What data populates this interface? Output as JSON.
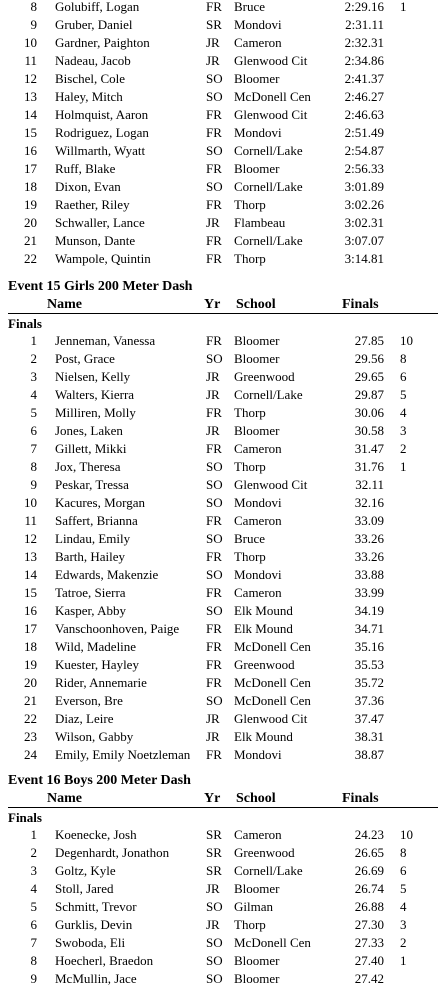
{
  "continued_rows": [
    {
      "place": 8,
      "name": "Golubiff, Logan",
      "yr": "FR",
      "school": "Bruce",
      "time": "2:29.16",
      "points": 1
    },
    {
      "place": 9,
      "name": "Gruber, Daniel",
      "yr": "SR",
      "school": "Mondovi",
      "time": "2:31.11"
    },
    {
      "place": 10,
      "name": "Gardner, Paighton",
      "yr": "JR",
      "school": "Cameron",
      "time": "2:32.31"
    },
    {
      "place": 11,
      "name": "Nadeau, Jacob",
      "yr": "JR",
      "school": "Glenwood Cit",
      "time": "2:34.86"
    },
    {
      "place": 12,
      "name": "Bischel, Cole",
      "yr": "SO",
      "school": "Bloomer",
      "time": "2:41.37"
    },
    {
      "place": 13,
      "name": "Haley, Mitch",
      "yr": "SO",
      "school": "McDonell Cen",
      "time": "2:46.27"
    },
    {
      "place": 14,
      "name": "Holmquist, Aaron",
      "yr": "FR",
      "school": "Glenwood Cit",
      "time": "2:46.63"
    },
    {
      "place": 15,
      "name": "Rodriguez, Logan",
      "yr": "FR",
      "school": "Mondovi",
      "time": "2:51.49"
    },
    {
      "place": 16,
      "name": "Willmarth, Wyatt",
      "yr": "SO",
      "school": "Cornell/Lake",
      "time": "2:54.87"
    },
    {
      "place": 17,
      "name": "Ruff, Blake",
      "yr": "FR",
      "school": "Bloomer",
      "time": "2:56.33"
    },
    {
      "place": 18,
      "name": "Dixon, Evan",
      "yr": "SO",
      "school": "Cornell/Lake",
      "time": "3:01.89"
    },
    {
      "place": 19,
      "name": "Raether, Riley",
      "yr": "FR",
      "school": "Thorp",
      "time": "3:02.26"
    },
    {
      "place": 20,
      "name": "Schwaller, Lance",
      "yr": "JR",
      "school": "Flambeau",
      "time": "3:02.31"
    },
    {
      "place": 21,
      "name": "Munson, Dante",
      "yr": "FR",
      "school": "Cornell/Lake",
      "time": "3:07.07"
    },
    {
      "place": 22,
      "name": "Wampole, Quintin",
      "yr": "FR",
      "school": "Thorp",
      "time": "3:14.81"
    }
  ],
  "events": [
    {
      "title": "Event 15  Girls 200 Meter Dash",
      "headers": {
        "name": "Name",
        "yr": "Yr",
        "school": "School",
        "finals": "Finals"
      },
      "round": "Finals",
      "rows": [
        {
          "place": 1,
          "name": "Jenneman, Vanessa",
          "yr": "FR",
          "school": "Bloomer",
          "time": "27.85",
          "points": 10
        },
        {
          "place": 2,
          "name": "Post, Grace",
          "yr": "SO",
          "school": "Bloomer",
          "time": "29.56",
          "points": 8
        },
        {
          "place": 3,
          "name": "Nielsen, Kelly",
          "yr": "JR",
          "school": "Greenwood",
          "time": "29.65",
          "points": 6
        },
        {
          "place": 4,
          "name": "Walters, Kierra",
          "yr": "JR",
          "school": "Cornell/Lake",
          "time": "29.87",
          "points": 5
        },
        {
          "place": 5,
          "name": "Milliren, Molly",
          "yr": "FR",
          "school": "Thorp",
          "time": "30.06",
          "points": 4
        },
        {
          "place": 6,
          "name": "Jones, Laken",
          "yr": "JR",
          "school": "Bloomer",
          "time": "30.58",
          "points": 3
        },
        {
          "place": 7,
          "name": "Gillett, Mikki",
          "yr": "FR",
          "school": "Cameron",
          "time": "31.47",
          "points": 2
        },
        {
          "place": 8,
          "name": "Jox, Theresa",
          "yr": "SO",
          "school": "Thorp",
          "time": "31.76",
          "points": 1
        },
        {
          "place": 9,
          "name": "Peskar, Tressa",
          "yr": "SO",
          "school": "Glenwood Cit",
          "time": "32.11"
        },
        {
          "place": 10,
          "name": "Kacures, Morgan",
          "yr": "SO",
          "school": "Mondovi",
          "time": "32.16"
        },
        {
          "place": 11,
          "name": "Saffert, Brianna",
          "yr": "FR",
          "school": "Cameron",
          "time": "33.09"
        },
        {
          "place": 12,
          "name": "Lindau, Emily",
          "yr": "SO",
          "school": "Bruce",
          "time": "33.26"
        },
        {
          "place": 13,
          "name": "Barth, Hailey",
          "yr": "FR",
          "school": "Thorp",
          "time": "33.26"
        },
        {
          "place": 14,
          "name": "Edwards, Makenzie",
          "yr": "SO",
          "school": "Mondovi",
          "time": "33.88"
        },
        {
          "place": 15,
          "name": "Tatroe, Sierra",
          "yr": "FR",
          "school": "Cameron",
          "time": "33.99"
        },
        {
          "place": 16,
          "name": "Kasper, Abby",
          "yr": "SO",
          "school": "Elk Mound",
          "time": "34.19"
        },
        {
          "place": 17,
          "name": "Vanschoonhoven, Paige",
          "yr": "FR",
          "school": "Elk Mound",
          "time": "34.71"
        },
        {
          "place": 18,
          "name": "Wild, Madeline",
          "yr": "FR",
          "school": "McDonell Cen",
          "time": "35.16"
        },
        {
          "place": 19,
          "name": "Kuester, Hayley",
          "yr": "FR",
          "school": "Greenwood",
          "time": "35.53"
        },
        {
          "place": 20,
          "name": "Rider, Annemarie",
          "yr": "FR",
          "school": "McDonell Cen",
          "time": "35.72"
        },
        {
          "place": 21,
          "name": "Everson, Bre",
          "yr": "SO",
          "school": "McDonell Cen",
          "time": "37.36"
        },
        {
          "place": 22,
          "name": "Diaz, Leire",
          "yr": "JR",
          "school": "Glenwood Cit",
          "time": "37.47"
        },
        {
          "place": 23,
          "name": "Wilson, Gabby",
          "yr": "JR",
          "school": "Elk Mound",
          "time": "38.31"
        },
        {
          "place": 24,
          "name": "Emily, Emily Noetzleman",
          "yr": "FR",
          "school": "Mondovi",
          "time": "38.87"
        }
      ]
    },
    {
      "title": "Event 16  Boys 200 Meter Dash",
      "headers": {
        "name": "Name",
        "yr": "Yr",
        "school": "School",
        "finals": "Finals"
      },
      "round": "Finals",
      "rows": [
        {
          "place": 1,
          "name": "Koenecke, Josh",
          "yr": "SR",
          "school": "Cameron",
          "time": "24.23",
          "points": 10
        },
        {
          "place": 2,
          "name": "Degenhardt, Jonathon",
          "yr": "SR",
          "school": "Greenwood",
          "time": "26.65",
          "points": 8
        },
        {
          "place": 3,
          "name": "Goltz, Kyle",
          "yr": "SR",
          "school": "Cornell/Lake",
          "time": "26.69",
          "points": 6
        },
        {
          "place": 4,
          "name": "Stoll, Jared",
          "yr": "JR",
          "school": "Bloomer",
          "time": "26.74",
          "points": 5
        },
        {
          "place": 5,
          "name": "Schmitt, Trevor",
          "yr": "SO",
          "school": "Gilman",
          "time": "26.88",
          "points": 4
        },
        {
          "place": 6,
          "name": "Gurklis, Devin",
          "yr": "JR",
          "school": "Thorp",
          "time": "27.30",
          "points": 3
        },
        {
          "place": 7,
          "name": "Swoboda, Eli",
          "yr": "SO",
          "school": "McDonell Cen",
          "time": "27.33",
          "points": 2
        },
        {
          "place": 8,
          "name": "Hoecherl, Braedon",
          "yr": "SO",
          "school": "Bloomer",
          "time": "27.40",
          "points": 1
        },
        {
          "place": 9,
          "name": "McMullin, Jace",
          "yr": "SO",
          "school": "Bloomer",
          "time": "27.42"
        }
      ]
    }
  ]
}
